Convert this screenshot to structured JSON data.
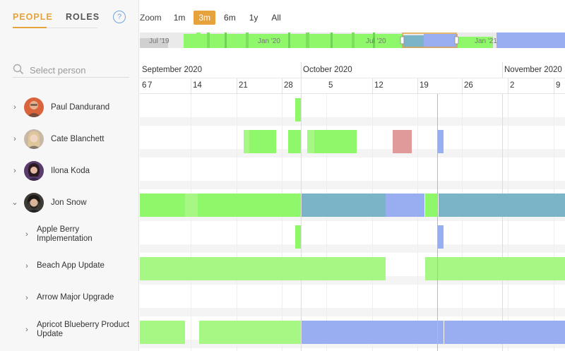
{
  "tabs": {
    "people": "PEOPLE",
    "roles": "ROLES",
    "help": "?"
  },
  "search": {
    "placeholder": "Select person"
  },
  "people": [
    {
      "name": "Paul Dandurand",
      "expanded": false
    },
    {
      "name": "Cate Blanchett",
      "expanded": false
    },
    {
      "name": "Ilona Koda",
      "expanded": false
    },
    {
      "name": "Jon Snow",
      "expanded": true
    }
  ],
  "projects": [
    {
      "name": "Apple Berry Implementation"
    },
    {
      "name": "Beach App Update"
    },
    {
      "name": "Arrow Major Upgrade"
    },
    {
      "name": "Apricot Blueberry Product Update"
    }
  ],
  "zoom": {
    "label": "Zoom",
    "options": [
      "1m",
      "3m",
      "6m",
      "1y",
      "All"
    ],
    "selected": "3m"
  },
  "navigator": {
    "labels": [
      "Jul '19",
      "Jan '20",
      "Jul '20",
      "Jan '21"
    ]
  },
  "axis": {
    "months": [
      "September 2020",
      "October 2020",
      "November 2020"
    ],
    "days": [
      "6",
      "7",
      "14",
      "21",
      "28",
      "5",
      "12",
      "19",
      "26",
      "2",
      "9"
    ]
  },
  "colors": {
    "accent": "#e6a23c",
    "green": "#8ef76a",
    "light_green": "#a6f784",
    "teal": "#7bb4c7",
    "blue": "#98aef0",
    "red": "#e09a9a"
  }
}
